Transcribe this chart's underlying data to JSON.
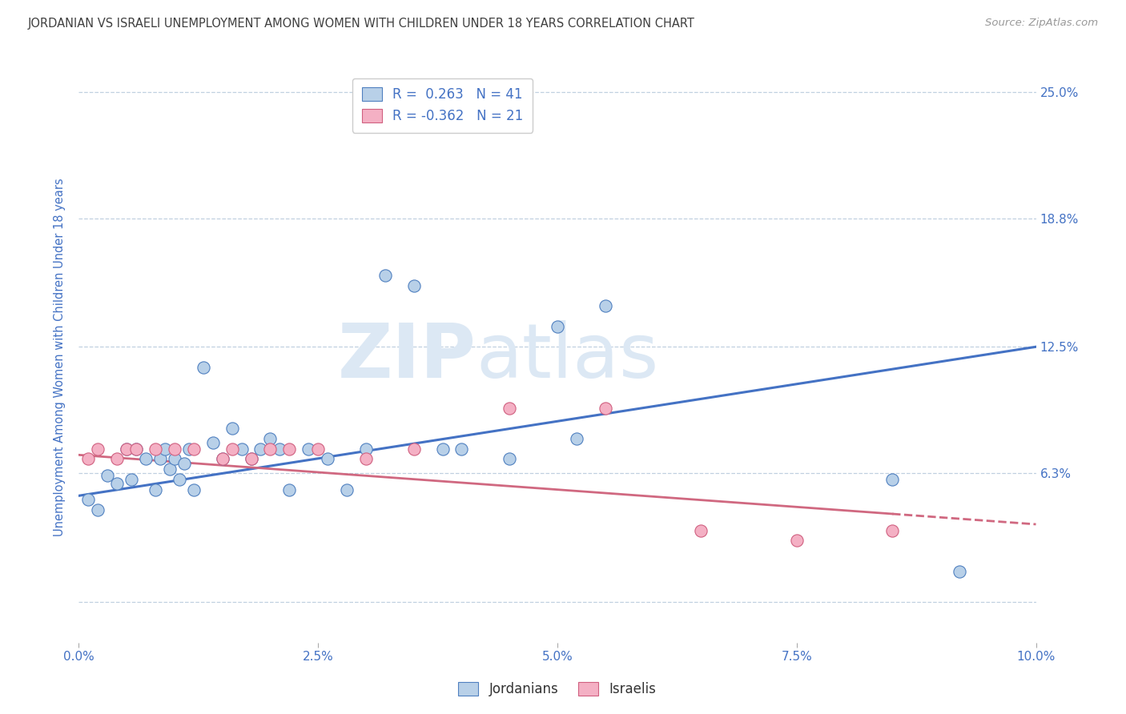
{
  "title": "JORDANIAN VS ISRAELI UNEMPLOYMENT AMONG WOMEN WITH CHILDREN UNDER 18 YEARS CORRELATION CHART",
  "source": "Source: ZipAtlas.com",
  "ylabel": "Unemployment Among Women with Children Under 18 years",
  "ytick_vals": [
    0.0,
    6.3,
    12.5,
    18.8,
    25.0
  ],
  "ytick_labels": [
    "",
    "6.3%",
    "12.5%",
    "18.8%",
    "25.0%"
  ],
  "xtick_vals": [
    0.0,
    2.5,
    5.0,
    7.5,
    10.0
  ],
  "xtick_labels": [
    "0.0%",
    "2.5%",
    "5.0%",
    "7.5%",
    "10.0%"
  ],
  "xlim": [
    0.0,
    10.0
  ],
  "ylim": [
    -2.0,
    26.0
  ],
  "series1_label": "Jordanians",
  "series1_face_color": "#b8d0e8",
  "series1_edge_color": "#5080c0",
  "series1_line_color": "#4472c4",
  "series1_R": 0.263,
  "series1_N": 41,
  "series2_label": "Israelis",
  "series2_face_color": "#f4b0c4",
  "series2_edge_color": "#d06080",
  "series2_line_color": "#d06880",
  "series2_R": -0.362,
  "series2_N": 21,
  "watermark_zip": "ZIP",
  "watermark_atlas": "atlas",
  "watermark_color": "#dce8f4",
  "background_color": "#ffffff",
  "grid_color": "#c0d0e0",
  "title_color": "#404040",
  "axis_color": "#4472c4",
  "jordanians_x": [
    0.1,
    0.2,
    0.3,
    0.4,
    0.5,
    0.55,
    0.6,
    0.7,
    0.8,
    0.85,
    0.9,
    0.95,
    1.0,
    1.05,
    1.1,
    1.15,
    1.2,
    1.3,
    1.4,
    1.5,
    1.6,
    1.7,
    1.8,
    1.9,
    2.0,
    2.1,
    2.2,
    2.4,
    2.6,
    2.8,
    3.0,
    3.2,
    3.5,
    3.8,
    4.0,
    4.5,
    5.0,
    5.2,
    5.5,
    8.5,
    9.2
  ],
  "jordanians_y": [
    5.0,
    4.5,
    6.2,
    5.8,
    7.5,
    6.0,
    7.5,
    7.0,
    5.5,
    7.0,
    7.5,
    6.5,
    7.0,
    6.0,
    6.8,
    7.5,
    5.5,
    11.5,
    7.8,
    7.0,
    8.5,
    7.5,
    7.0,
    7.5,
    8.0,
    7.5,
    5.5,
    7.5,
    7.0,
    5.5,
    7.5,
    16.0,
    15.5,
    7.5,
    7.5,
    7.0,
    13.5,
    8.0,
    14.5,
    6.0,
    1.5
  ],
  "israelis_x": [
    0.1,
    0.2,
    0.4,
    0.5,
    0.6,
    0.8,
    1.0,
    1.2,
    1.5,
    1.6,
    1.8,
    2.0,
    2.2,
    2.5,
    3.0,
    3.5,
    4.5,
    5.5,
    6.5,
    7.5,
    8.5
  ],
  "israelis_y": [
    7.0,
    7.5,
    7.0,
    7.5,
    7.5,
    7.5,
    7.5,
    7.5,
    7.0,
    7.5,
    7.0,
    7.5,
    7.5,
    7.5,
    7.0,
    7.5,
    9.5,
    9.5,
    3.5,
    3.0,
    3.5
  ],
  "trend_jordan_x0": 0.0,
  "trend_jordan_y0": 5.2,
  "trend_jordan_x1": 10.0,
  "trend_jordan_y1": 12.5,
  "trend_israel_x0": 0.0,
  "trend_israel_y0": 7.2,
  "trend_israel_x1": 10.0,
  "trend_israel_y1": 3.8
}
